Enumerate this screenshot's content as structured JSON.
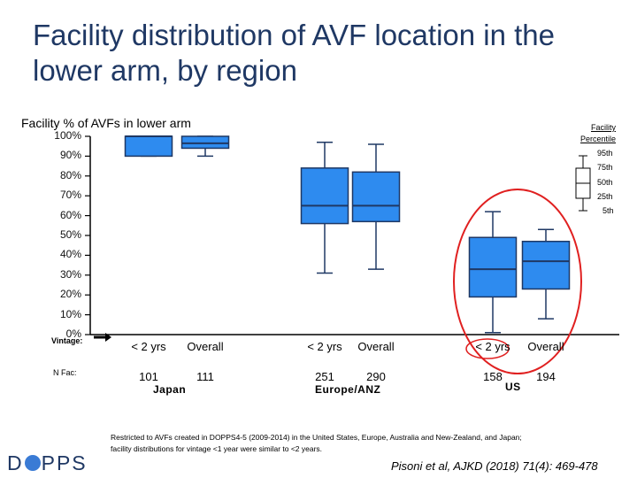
{
  "title": "Facility distribution of AVF location in the lower arm, by region",
  "chart_data": {
    "type": "boxplot",
    "ylabel": "Facility % of AVFs in lower arm",
    "ylim": [
      0,
      100
    ],
    "yticks": [
      "0%",
      "10%",
      "20%",
      "30%",
      "40%",
      "50%",
      "60%",
      "70%",
      "80%",
      "90%",
      "100%"
    ],
    "groups": [
      {
        "region": "Japan",
        "items": [
          {
            "vintage": "< 2 yrs",
            "n": "101",
            "p5": 90,
            "p25": 90,
            "p50": 100,
            "p75": 100,
            "p95": 100
          },
          {
            "vintage": "Overall",
            "n": "111",
            "p5": 90,
            "p25": 94,
            "p50": 96.5,
            "p75": 100,
            "p95": 100
          }
        ]
      },
      {
        "region": "Europe/ANZ",
        "items": [
          {
            "vintage": "< 2 yrs",
            "n": "251",
            "p5": 31,
            "p25": 56,
            "p50": 65,
            "p75": 84,
            "p95": 97
          },
          {
            "vintage": "Overall",
            "n": "290",
            "p5": 33,
            "p25": 57,
            "p50": 65,
            "p75": 82,
            "p95": 96
          }
        ]
      },
      {
        "region": "US",
        "items": [
          {
            "vintage": "< 2 yrs",
            "n": "158",
            "p5": 1,
            "p25": 19,
            "p50": 33,
            "p75": 49,
            "p95": 62
          },
          {
            "vintage": "Overall",
            "n": "194",
            "p5": 8,
            "p25": 23,
            "p50": 37,
            "p75": 47,
            "p95": 53
          }
        ]
      }
    ],
    "legend": {
      "title": "Facility Percentile",
      "labels": [
        "95th",
        "75th",
        "50th",
        "25th",
        "5th"
      ]
    },
    "colors": {
      "box": "#2e8bef",
      "whisker": "#1f3864",
      "highlight": "#e02020"
    }
  },
  "axis": {
    "vintage_label": "Vintage:",
    "nfac_label": "N Fac:"
  },
  "footnote": "Restricted to AVFs created in DOPPS4-5 (2009-2014) in the United States, Europe, Australia and New-Zealand, and Japan; facility distributions for vintage <1 year were similar to <2 years.",
  "citation": "Pisoni et al, AJKD (2018) 71(4): 469-478",
  "logo": {
    "left": "D",
    "right": "PPS"
  }
}
